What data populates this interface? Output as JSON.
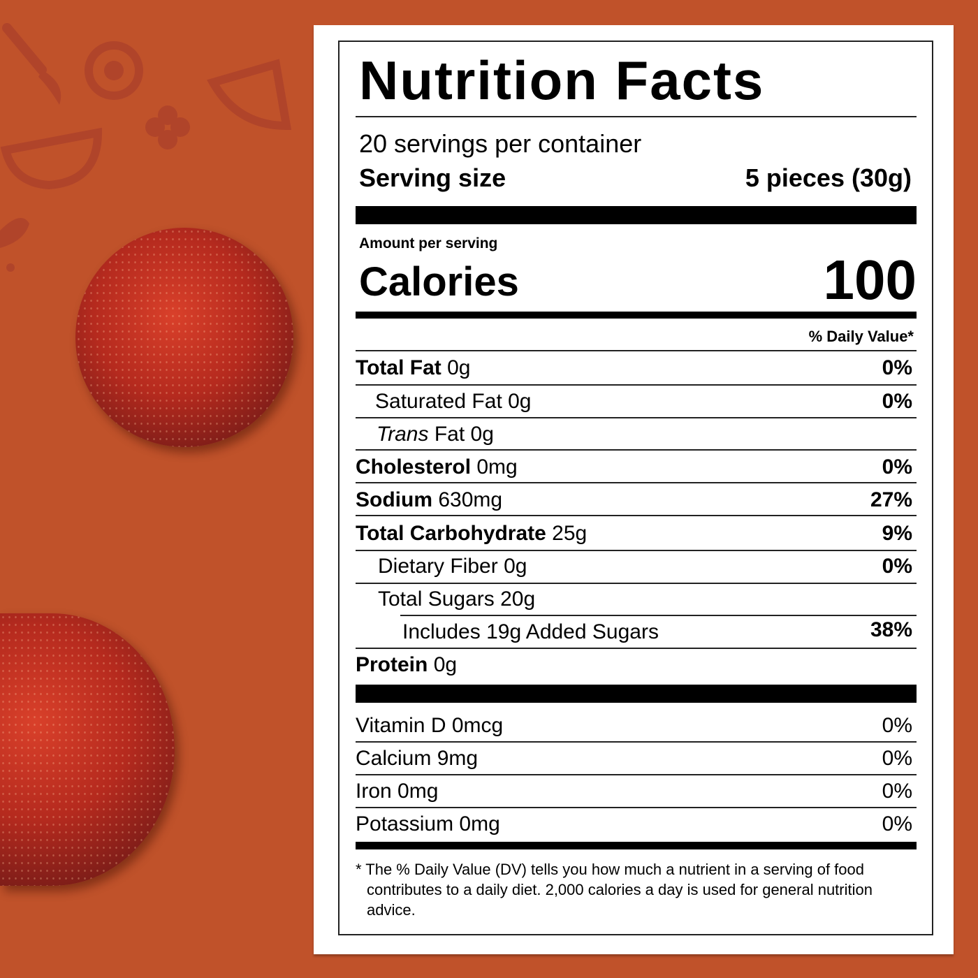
{
  "colors": {
    "background": "#c0522a",
    "decor": "#b0442a",
    "panel": "#ffffff",
    "ink": "#000000"
  },
  "label": {
    "title": "Nutrition Facts",
    "servings_per_container": "20 servings per container",
    "serving_size_label": "Serving size",
    "serving_size_value": "5 pieces (30g)",
    "amount_per_serving": "Amount per serving",
    "calories_label": "Calories",
    "calories_value": "100",
    "daily_value_header": "% Daily Value*",
    "nutrients": [
      {
        "name": "Total Fat",
        "amount": "0g",
        "dv": "0%"
      },
      {
        "name": "Saturated Fat",
        "amount": "0g",
        "dv": "0%"
      },
      {
        "name_italic": "Trans",
        "name": "Fat",
        "amount": "0g",
        "dv": ""
      },
      {
        "name": "Cholesterol",
        "amount": "0mg",
        "dv": "0%"
      },
      {
        "name": "Sodium",
        "amount": "630mg",
        "dv": "27%"
      },
      {
        "name": "Total Carbohydrate",
        "amount": "25g",
        "dv": "9%"
      },
      {
        "name": "Dietary Fiber",
        "amount": "0g",
        "dv": "0%"
      },
      {
        "name": "Total Sugars",
        "amount": "20g",
        "dv": ""
      },
      {
        "name": "Includes 19g Added Sugars",
        "amount": "",
        "dv": "38%"
      },
      {
        "name": "Protein",
        "amount": "0g",
        "dv": ""
      }
    ],
    "vitamins": [
      {
        "name": "Vitamin D 0mcg",
        "dv": "0%"
      },
      {
        "name": "Calcium 9mg",
        "dv": "0%"
      },
      {
        "name": "Iron 0mg",
        "dv": "0%"
      },
      {
        "name": "Potassium 0mg",
        "dv": "0%"
      }
    ],
    "footnote": "* The % Daily Value (DV) tells you how much a nutrient in a serving of food contributes to a daily diet. 2,000 calories a day is used for general nutrition advice."
  }
}
